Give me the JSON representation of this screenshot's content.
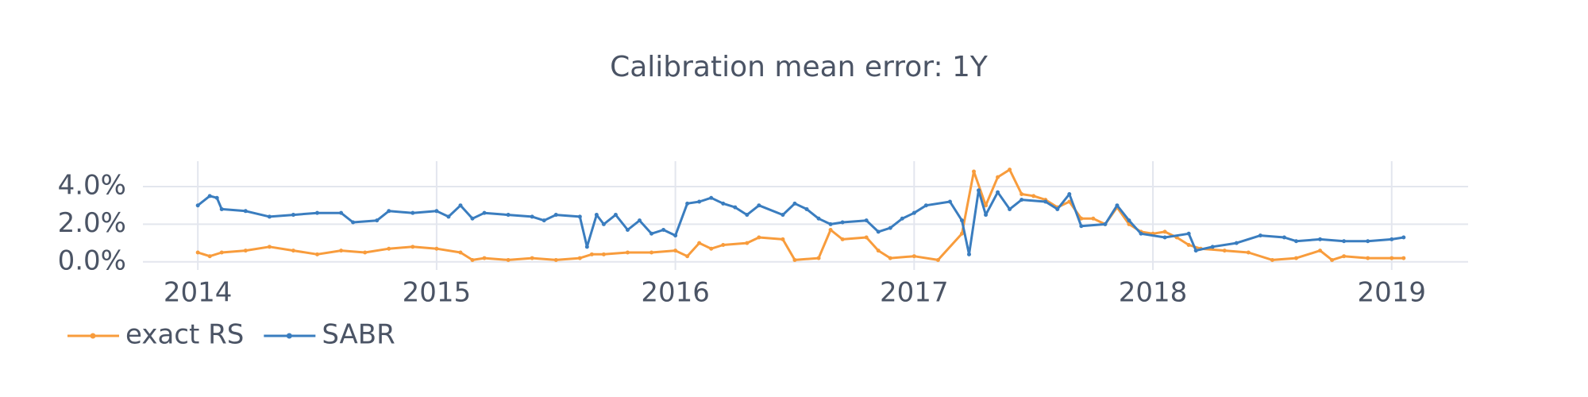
{
  "chart_data": {
    "type": "line",
    "title": "Calibration mean error: 1Y",
    "xlim": [
      2013.77,
      2019.32
    ],
    "xticks": [
      2014,
      2015,
      2016,
      2017,
      2018,
      2019
    ],
    "ylim": [
      -0.43,
      5.35
    ],
    "yticks": [
      {
        "value": 0,
        "label": "0.0%"
      },
      {
        "value": 2,
        "label": "2.0%"
      },
      {
        "value": 4,
        "label": "4.0%"
      }
    ],
    "grid": true,
    "legend": "bottom-left",
    "series": [
      {
        "name": "exact RS",
        "color": "#f89c3c",
        "x": [
          2014.0,
          2014.05,
          2014.1,
          2014.2,
          2014.3,
          2014.4,
          2014.5,
          2014.6,
          2014.7,
          2014.8,
          2014.9,
          2015.0,
          2015.1,
          2015.15,
          2015.2,
          2015.3,
          2015.4,
          2015.5,
          2015.6,
          2015.65,
          2015.7,
          2015.8,
          2015.9,
          2016.0,
          2016.05,
          2016.1,
          2016.15,
          2016.2,
          2016.3,
          2016.35,
          2016.45,
          2016.5,
          2016.6,
          2016.65,
          2016.7,
          2016.8,
          2016.85,
          2016.9,
          2017.0,
          2017.1,
          2017.2,
          2017.25,
          2017.3,
          2017.35,
          2017.4,
          2017.45,
          2017.5,
          2017.55,
          2017.6,
          2017.65,
          2017.7,
          2017.75,
          2017.8,
          2017.85,
          2017.9,
          2017.95,
          2018.0,
          2018.05,
          2018.1,
          2018.15,
          2018.2,
          2018.3,
          2018.4,
          2018.5,
          2018.6,
          2018.7,
          2018.75,
          2018.8,
          2018.9,
          2019.0,
          2019.05
        ],
        "values": [
          0.5,
          0.3,
          0.5,
          0.6,
          0.8,
          0.6,
          0.4,
          0.6,
          0.5,
          0.7,
          0.8,
          0.7,
          0.5,
          0.1,
          0.2,
          0.1,
          0.2,
          0.1,
          0.2,
          0.4,
          0.4,
          0.5,
          0.5,
          0.6,
          0.3,
          1.0,
          0.7,
          0.9,
          1.0,
          1.3,
          1.2,
          0.1,
          0.2,
          1.7,
          1.2,
          1.3,
          0.6,
          0.2,
          0.3,
          0.1,
          1.5,
          4.8,
          3.0,
          4.5,
          4.9,
          3.6,
          3.5,
          3.3,
          2.9,
          3.2,
          2.3,
          2.3,
          2.0,
          2.9,
          2.0,
          1.6,
          1.5,
          1.6,
          1.3,
          0.9,
          0.7,
          0.6,
          0.5,
          0.1,
          0.2,
          0.6,
          0.1,
          0.3,
          0.2,
          0.2,
          0.2
        ]
      },
      {
        "name": "SABR",
        "color": "#3a7dbf",
        "x": [
          2014.0,
          2014.05,
          2014.08,
          2014.1,
          2014.2,
          2014.3,
          2014.4,
          2014.5,
          2014.6,
          2014.65,
          2014.75,
          2014.8,
          2014.9,
          2015.0,
          2015.05,
          2015.1,
          2015.15,
          2015.2,
          2015.3,
          2015.4,
          2015.45,
          2015.5,
          2015.6,
          2015.63,
          2015.67,
          2015.7,
          2015.75,
          2015.8,
          2015.85,
          2015.9,
          2015.95,
          2016.0,
          2016.05,
          2016.1,
          2016.15,
          2016.2,
          2016.25,
          2016.3,
          2016.35,
          2016.45,
          2016.5,
          2016.55,
          2016.6,
          2016.65,
          2016.7,
          2016.8,
          2016.85,
          2016.9,
          2016.95,
          2017.0,
          2017.05,
          2017.15,
          2017.2,
          2017.23,
          2017.27,
          2017.3,
          2017.35,
          2017.4,
          2017.45,
          2017.55,
          2017.6,
          2017.65,
          2017.7,
          2017.8,
          2017.85,
          2017.9,
          2017.95,
          2018.05,
          2018.15,
          2018.18,
          2018.25,
          2018.35,
          2018.45,
          2018.55,
          2018.6,
          2018.7,
          2018.8,
          2018.9,
          2019.0,
          2019.05
        ],
        "values": [
          3.0,
          3.5,
          3.4,
          2.8,
          2.7,
          2.4,
          2.5,
          2.6,
          2.6,
          2.1,
          2.2,
          2.7,
          2.6,
          2.7,
          2.4,
          3.0,
          2.3,
          2.6,
          2.5,
          2.4,
          2.2,
          2.5,
          2.4,
          0.8,
          2.5,
          2.0,
          2.5,
          1.7,
          2.2,
          1.5,
          1.7,
          1.4,
          3.1,
          3.2,
          3.4,
          3.1,
          2.9,
          2.5,
          3.0,
          2.5,
          3.1,
          2.8,
          2.3,
          2.0,
          2.1,
          2.2,
          1.6,
          1.8,
          2.3,
          2.6,
          3.0,
          3.2,
          2.2,
          0.4,
          3.8,
          2.5,
          3.7,
          2.8,
          3.3,
          3.2,
          2.8,
          3.6,
          1.9,
          2.0,
          3.0,
          2.2,
          1.5,
          1.3,
          1.5,
          0.6,
          0.8,
          1.0,
          1.4,
          1.3,
          1.1,
          1.2,
          1.1,
          1.1,
          1.2,
          1.3
        ]
      }
    ]
  }
}
